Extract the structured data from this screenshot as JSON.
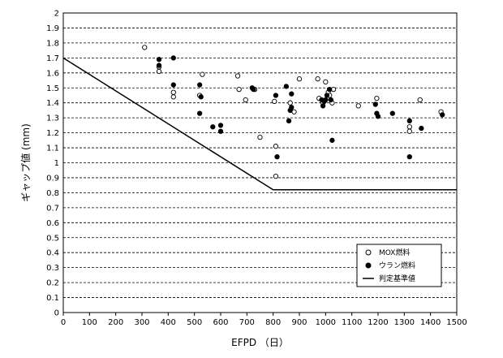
{
  "chart_data": {
    "type": "scatter",
    "title": "",
    "xlabel": "EFPD （日）",
    "ylabel": "ギャップ値 (mm)",
    "xlim": [
      0,
      1500
    ],
    "ylim": [
      0,
      2
    ],
    "xticks": [
      "0",
      "100",
      "200",
      "300",
      "400",
      "500",
      "600",
      "700",
      "800",
      "900",
      "1000",
      "1100",
      "1200",
      "1300",
      "1400",
      "1500"
    ],
    "yticks": [
      "0",
      "0.1",
      "0.2",
      "0.3",
      "0.4",
      "0.5",
      "0.6",
      "0.7",
      "0.8",
      "0.9",
      "1",
      "1.1",
      "1.2",
      "1.3",
      "1.4",
      "1.5",
      "1.6",
      "1.7",
      "1.8",
      "1.9",
      "2"
    ],
    "grid": "horizontal-dashed",
    "legend_position": "bottom-right",
    "series": [
      {
        "name": "MOX燃料",
        "marker": "open-circle",
        "points": [
          [
            310,
            1.77
          ],
          [
            365,
            1.61
          ],
          [
            365,
            1.64
          ],
          [
            420,
            1.47
          ],
          [
            420,
            1.44
          ],
          [
            520,
            1.45
          ],
          [
            530,
            1.59
          ],
          [
            665,
            1.58
          ],
          [
            670,
            1.49
          ],
          [
            695,
            1.42
          ],
          [
            730,
            1.49
          ],
          [
            750,
            1.17
          ],
          [
            805,
            1.41
          ],
          [
            810,
            1.11
          ],
          [
            810,
            0.91
          ],
          [
            865,
            1.4
          ],
          [
            880,
            1.34
          ],
          [
            900,
            1.56
          ],
          [
            970,
            1.56
          ],
          [
            975,
            1.43
          ],
          [
            990,
            1.4
          ],
          [
            1000,
            1.54
          ],
          [
            1010,
            1.47
          ],
          [
            1015,
            1.45
          ],
          [
            1025,
            1.4
          ],
          [
            1030,
            1.49
          ],
          [
            1125,
            1.38
          ],
          [
            1195,
            1.43
          ],
          [
            1320,
            1.24
          ],
          [
            1320,
            1.21
          ],
          [
            1360,
            1.42
          ],
          [
            1440,
            1.34
          ]
        ]
      },
      {
        "name": "ウラン燃料",
        "marker": "filled-circle",
        "points": [
          [
            365,
            1.69
          ],
          [
            365,
            1.65
          ],
          [
            420,
            1.7
          ],
          [
            420,
            1.52
          ],
          [
            520,
            1.52
          ],
          [
            520,
            1.33
          ],
          [
            525,
            1.44
          ],
          [
            570,
            1.24
          ],
          [
            600,
            1.25
          ],
          [
            600,
            1.21
          ],
          [
            720,
            1.5
          ],
          [
            725,
            1.49
          ],
          [
            810,
            1.45
          ],
          [
            815,
            1.04
          ],
          [
            850,
            1.51
          ],
          [
            860,
            1.28
          ],
          [
            865,
            1.35
          ],
          [
            870,
            1.37
          ],
          [
            870,
            1.46
          ],
          [
            985,
            1.42
          ],
          [
            990,
            1.38
          ],
          [
            995,
            1.41
          ],
          [
            1000,
            1.42
          ],
          [
            1005,
            1.45
          ],
          [
            1015,
            1.49
          ],
          [
            1020,
            1.42
          ],
          [
            1025,
            1.15
          ],
          [
            1190,
            1.39
          ],
          [
            1195,
            1.33
          ],
          [
            1200,
            1.31
          ],
          [
            1255,
            1.33
          ],
          [
            1320,
            1.28
          ],
          [
            1320,
            1.04
          ],
          [
            1365,
            1.23
          ],
          [
            1445,
            1.32
          ]
        ]
      },
      {
        "name": "判定基準値",
        "marker": "line",
        "points": [
          [
            0,
            1.7
          ],
          [
            800,
            0.82
          ],
          [
            1500,
            0.82
          ]
        ]
      }
    ]
  }
}
